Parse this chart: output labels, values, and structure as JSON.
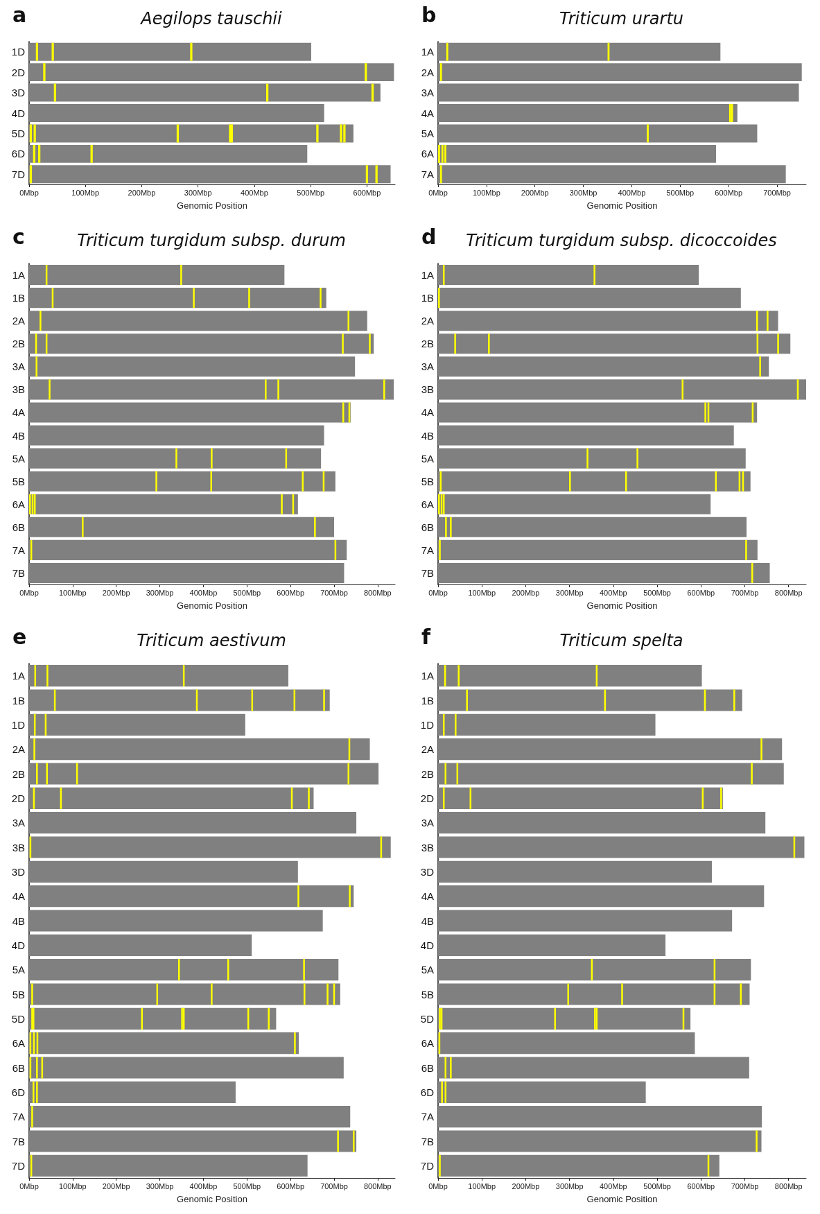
{
  "chart_data": [
    {
      "type": "bar",
      "orientation": "horizontal",
      "title": "Aegilops tauschii",
      "annotations": [
        "a"
      ],
      "xlabel": "Genomic Position",
      "categories": [
        "1D",
        "2D",
        "3D",
        "4D",
        "5D",
        "6D",
        "7D"
      ],
      "xlim": [
        0,
        650
      ],
      "xticks": [
        {
          "value": 0,
          "label": "0Mbp"
        },
        {
          "value": 100,
          "label": "100Mbp"
        },
        {
          "value": 200,
          "label": "200Mbp"
        },
        {
          "value": 300,
          "label": "300Mbp"
        },
        {
          "value": 400,
          "label": "400Mbp"
        },
        {
          "value": 500,
          "label": "500Mbp"
        },
        {
          "value": 600,
          "label": "600Mbp"
        }
      ],
      "series": [
        {
          "color": "#808080",
          "values": [
            501,
            648,
            624,
            524,
            576,
            494,
            642
          ]
        },
        {
          "color": "#ffff00",
          "x": [
            "1D",
            "1D",
            "1D",
            "2D",
            "2D",
            "3D",
            "3D",
            "3D",
            "5D",
            "5D",
            "5D",
            "5D",
            "5D",
            "5D",
            "5D",
            "5D",
            "6D",
            "6D",
            "6D",
            "7D",
            "7D",
            "7D"
          ],
          "base": [
            12,
            40,
            286,
            25,
            596,
            44,
            421,
            608,
            1,
            8,
            262,
            355,
            358,
            510,
            552,
            558,
            7,
            16,
            109,
            1,
            598,
            615
          ],
          "values": [
            4,
            4,
            4,
            4,
            4,
            4,
            4,
            4,
            4,
            4,
            4,
            4,
            4,
            4,
            4,
            4,
            4,
            4,
            4,
            4,
            4,
            4
          ]
        }
      ]
    },
    {
      "type": "bar",
      "orientation": "horizontal",
      "title": "Triticum urartu",
      "annotations": [
        "b"
      ],
      "xlabel": "Genomic Position",
      "categories": [
        "1A",
        "2A",
        "3A",
        "4A",
        "5A",
        "6A",
        "7A"
      ],
      "xlim": [
        0,
        760
      ],
      "xticks": [
        {
          "value": 0,
          "label": "0Mbp"
        },
        {
          "value": 100,
          "label": "100Mbp"
        },
        {
          "value": 200,
          "label": "200Mbp"
        },
        {
          "value": 300,
          "label": "300Mbp"
        },
        {
          "value": 400,
          "label": "400Mbp"
        },
        {
          "value": 500,
          "label": "500Mbp"
        },
        {
          "value": 600,
          "label": "600Mbp"
        },
        {
          "value": 700,
          "label": "700Mbp"
        }
      ],
      "series": [
        {
          "color": "#808080",
          "values": [
            583,
            751,
            745,
            618,
            659,
            574,
            718
          ]
        },
        {
          "color": "#ffff00",
          "x": [
            "1A",
            "1A",
            "2A",
            "4A",
            "4A",
            "5A",
            "6A",
            "6A",
            "6A",
            "7A"
          ],
          "base": [
            17,
            350,
            4,
            601,
            605,
            431,
            0,
            7,
            13,
            4
          ],
          "values": [
            4,
            4,
            4,
            4,
            4,
            4,
            4,
            4,
            4,
            4
          ]
        }
      ]
    },
    {
      "type": "bar",
      "orientation": "horizontal",
      "title": "Triticum turgidum subsp. durum",
      "annotations": [
        "c"
      ],
      "xlabel": "Genomic Position",
      "categories": [
        "1A",
        "1B",
        "2A",
        "2B",
        "3A",
        "3B",
        "4A",
        "4B",
        "5A",
        "5B",
        "6A",
        "6B",
        "7A",
        "7B"
      ],
      "xlim": [
        0,
        840
      ],
      "xticks": [
        {
          "value": 0,
          "label": "0Mbp"
        },
        {
          "value": 100,
          "label": "100Mbp"
        },
        {
          "value": 200,
          "label": "200Mbp"
        },
        {
          "value": 300,
          "label": "300Mbp"
        },
        {
          "value": 400,
          "label": "400Mbp"
        },
        {
          "value": 500,
          "label": "500Mbp"
        },
        {
          "value": 600,
          "label": "600Mbp"
        },
        {
          "value": 700,
          "label": "700Mbp"
        },
        {
          "value": 800,
          "label": "800Mbp"
        }
      ],
      "series": [
        {
          "color": "#808080",
          "values": [
            586,
            682,
            776,
            791,
            748,
            837,
            738,
            677,
            670,
            703,
            617,
            700,
            729,
            723
          ]
        },
        {
          "color": "#ffff00",
          "x": [
            "1A",
            "1A",
            "1B",
            "1B",
            "1B",
            "1B",
            "2A",
            "2A",
            "2B",
            "2B",
            "2B",
            "2B",
            "3A",
            "3B",
            "3B",
            "3B",
            "3B",
            "4A",
            "4A",
            "5A",
            "5A",
            "5A",
            "5B",
            "5B",
            "5B",
            "5B",
            "6A",
            "6A",
            "6A",
            "6A",
            "6A",
            "6B",
            "6B",
            "7A",
            "7A"
          ],
          "base": [
            38,
            347,
            52,
            376,
            503,
            667,
            24,
            731,
            14,
            38,
            718,
            780,
            15,
            45,
            541,
            570,
            813,
            719,
            733,
            336,
            417,
            588,
            290,
            416,
            626,
            674,
            0,
            6,
            11,
            578,
            604,
            121,
            654,
            3,
            701
          ],
          "values": [
            4,
            4,
            4,
            4,
            4,
            4,
            4,
            4,
            4,
            4,
            4,
            4,
            4,
            4,
            4,
            4,
            4,
            4,
            4,
            4,
            4,
            4,
            4,
            4,
            4,
            4,
            4,
            4,
            4,
            4,
            4,
            4,
            4,
            4,
            4
          ]
        }
      ]
    },
    {
      "type": "bar",
      "orientation": "horizontal",
      "title": "Triticum turgidum subsp. dicoccoides",
      "annotations": [
        "d"
      ],
      "xlabel": "Genomic Position",
      "categories": [
        "1A",
        "1B",
        "2A",
        "2B",
        "3A",
        "3B",
        "4A",
        "4B",
        "5A",
        "5B",
        "6A",
        "6B",
        "7A",
        "7B"
      ],
      "xlim": [
        0,
        840
      ],
      "xticks": [
        {
          "value": 0,
          "label": "0Mbp"
        },
        {
          "value": 100,
          "label": "100Mbp"
        },
        {
          "value": 200,
          "label": "200Mbp"
        },
        {
          "value": 300,
          "label": "300Mbp"
        },
        {
          "value": 400,
          "label": "400Mbp"
        },
        {
          "value": 500,
          "label": "500Mbp"
        },
        {
          "value": 600,
          "label": "600Mbp"
        },
        {
          "value": 700,
          "label": "700Mbp"
        },
        {
          "value": 800,
          "label": "800Mbp"
        }
      ],
      "series": [
        {
          "color": "#808080",
          "values": [
            595,
            691,
            776,
            804,
            755,
            840,
            728,
            675,
            702,
            713,
            622,
            704,
            729,
            757
          ]
        },
        {
          "color": "#ffff00",
          "x": [
            "1A",
            "1A",
            "1B",
            "2A",
            "2A",
            "2B",
            "2B",
            "2B",
            "2B",
            "3A",
            "3B",
            "3B",
            "4A",
            "4A",
            "4A",
            "5A",
            "5A",
            "5B",
            "5B",
            "5B",
            "5B",
            "5B",
            "5B",
            "6A",
            "6A",
            "6A",
            "6B",
            "6B",
            "7A",
            "7A",
            "7B"
          ],
          "base": [
            11,
            355,
            0,
            726,
            750,
            37,
            114,
            727,
            774,
            733,
            556,
            819,
            608,
            615,
            716,
            339,
            453,
            4,
            299,
            427,
            632,
            686,
            694,
            0,
            6,
            11,
            16,
            27,
            2,
            701,
            715
          ],
          "values": [
            4,
            4,
            4,
            4,
            4,
            4,
            4,
            4,
            4,
            4,
            4,
            4,
            4,
            4,
            4,
            4,
            4,
            4,
            4,
            4,
            4,
            4,
            4,
            4,
            4,
            4,
            4,
            4,
            4,
            4,
            4
          ]
        }
      ]
    },
    {
      "type": "bar",
      "orientation": "horizontal",
      "title": "Triticum aestivum",
      "annotations": [
        "e"
      ],
      "xlabel": "Genomic Position",
      "categories": [
        "1A",
        "1B",
        "1D",
        "2A",
        "2B",
        "2D",
        "3A",
        "3B",
        "3D",
        "4A",
        "4B",
        "4D",
        "5A",
        "5B",
        "5D",
        "6A",
        "6B",
        "6D",
        "7A",
        "7B",
        "7D"
      ],
      "xlim": [
        0,
        840
      ],
      "xticks": [
        {
          "value": 0,
          "label": "0Mbp"
        },
        {
          "value": 100,
          "label": "100Mbp"
        },
        {
          "value": 200,
          "label": "200Mbp"
        },
        {
          "value": 300,
          "label": "300Mbp"
        },
        {
          "value": 400,
          "label": "400Mbp"
        },
        {
          "value": 500,
          "label": "500Mbp"
        },
        {
          "value": 600,
          "label": "600Mbp"
        },
        {
          "value": 700,
          "label": "700Mbp"
        },
        {
          "value": 800,
          "label": "800Mbp"
        }
      ],
      "series": [
        {
          "color": "#808080",
          "values": [
            595,
            690,
            496,
            782,
            802,
            653,
            751,
            830,
            617,
            745,
            674,
            511,
            710,
            714,
            567,
            619,
            722,
            474,
            737,
            751,
            639
          ]
        },
        {
          "color": "#ffff00",
          "x": [
            "1A",
            "1A",
            "1A",
            "1B",
            "1B",
            "1B",
            "1B",
            "1B",
            "1D",
            "1D",
            "2A",
            "2A",
            "2B",
            "2B",
            "2B",
            "2B",
            "2D",
            "2D",
            "2D",
            "2D",
            "3B",
            "3B",
            "4A",
            "4A",
            "5A",
            "5A",
            "5A",
            "5B",
            "5B",
            "5B",
            "5B",
            "5B",
            "5B",
            "5D",
            "5D",
            "5D",
            "5D",
            "5D",
            "5D",
            "5D",
            "6A",
            "6A",
            "6A",
            "6A",
            "6B",
            "6B",
            "6B",
            "6D",
            "6D",
            "7A",
            "7B",
            "7B",
            "7D"
          ],
          "base": [
            12,
            40,
            353,
            57,
            383,
            510,
            607,
            675,
            11,
            36,
            10,
            733,
            16,
            39,
            108,
            731,
            9,
            71,
            601,
            640,
            1,
            806,
            616,
            734,
            342,
            455,
            629,
            5,
            292,
            417,
            630,
            683,
            698,
            5,
            8,
            257,
            349,
            353,
            501,
            548,
            1,
            9,
            17,
            608,
            1,
            16,
            28,
            8,
            16,
            5,
            707,
            743,
            3
          ],
          "values": [
            4,
            4,
            4,
            4,
            4,
            4,
            4,
            4,
            4,
            4,
            4,
            4,
            4,
            4,
            4,
            4,
            4,
            4,
            4,
            4,
            4,
            4,
            4,
            4,
            4,
            4,
            4,
            4,
            4,
            4,
            4,
            4,
            4,
            4,
            4,
            4,
            4,
            4,
            4,
            4,
            4,
            4,
            4,
            4,
            4,
            4,
            4,
            4,
            4,
            4,
            4,
            4,
            4
          ]
        }
      ]
    },
    {
      "type": "bar",
      "orientation": "horizontal",
      "title": "Triticum spelta",
      "annotations": [
        "f"
      ],
      "xlabel": "Genomic Position",
      "categories": [
        "1A",
        "1B",
        "1D",
        "2A",
        "2B",
        "2D",
        "3A",
        "3B",
        "3D",
        "4A",
        "4B",
        "4D",
        "5A",
        "5B",
        "5D",
        "6A",
        "6B",
        "6D",
        "7A",
        "7B",
        "7D"
      ],
      "xlim": [
        0,
        840
      ],
      "xticks": [
        {
          "value": 0,
          "label": "0Mbp"
        },
        {
          "value": 100,
          "label": "100Mbp"
        },
        {
          "value": 200,
          "label": "200Mbp"
        },
        {
          "value": 300,
          "label": "300Mbp"
        },
        {
          "value": 400,
          "label": "400Mbp"
        },
        {
          "value": 500,
          "label": "500Mbp"
        },
        {
          "value": 600,
          "label": "600Mbp"
        },
        {
          "value": 700,
          "label": "700Mbp"
        },
        {
          "value": 800,
          "label": "800Mbp"
        }
      ],
      "series": [
        {
          "color": "#808080",
          "values": [
            602,
            694,
            496,
            785,
            789,
            650,
            747,
            836,
            625,
            744,
            671,
            519,
            714,
            711,
            576,
            586,
            710,
            474,
            739,
            738,
            642
          ]
        },
        {
          "color": "#ffff00",
          "x": [
            "1A",
            "1A",
            "1A",
            "1B",
            "1B",
            "1B",
            "1B",
            "1D",
            "1D",
            "2A",
            "2B",
            "2B",
            "2B",
            "2D",
            "2D",
            "2D",
            "2D",
            "3B",
            "5A",
            "5A",
            "5B",
            "5B",
            "5B",
            "5B",
            "5D",
            "5D",
            "5D",
            "5D",
            "5D",
            "5D",
            "6A",
            "6B",
            "6B",
            "6D",
            "6D",
            "7B",
            "7D",
            "7D"
          ],
          "base": [
            14,
            45,
            360,
            64,
            379,
            607,
            674,
            11,
            38,
            736,
            15,
            42,
            714,
            11,
            72,
            602,
            644,
            811,
            349,
            629,
            295,
            418,
            629,
            689,
            2,
            6,
            265,
            356,
            360,
            558,
            1,
            15,
            27,
            7,
            15,
            725,
            2,
            615
          ],
          "values": [
            4,
            4,
            4,
            4,
            4,
            4,
            4,
            4,
            4,
            4,
            4,
            4,
            4,
            4,
            4,
            4,
            4,
            4,
            4,
            4,
            4,
            4,
            4,
            4,
            4,
            4,
            4,
            4,
            4,
            4,
            4,
            4,
            4,
            4,
            4,
            4,
            4,
            4
          ]
        }
      ]
    }
  ]
}
